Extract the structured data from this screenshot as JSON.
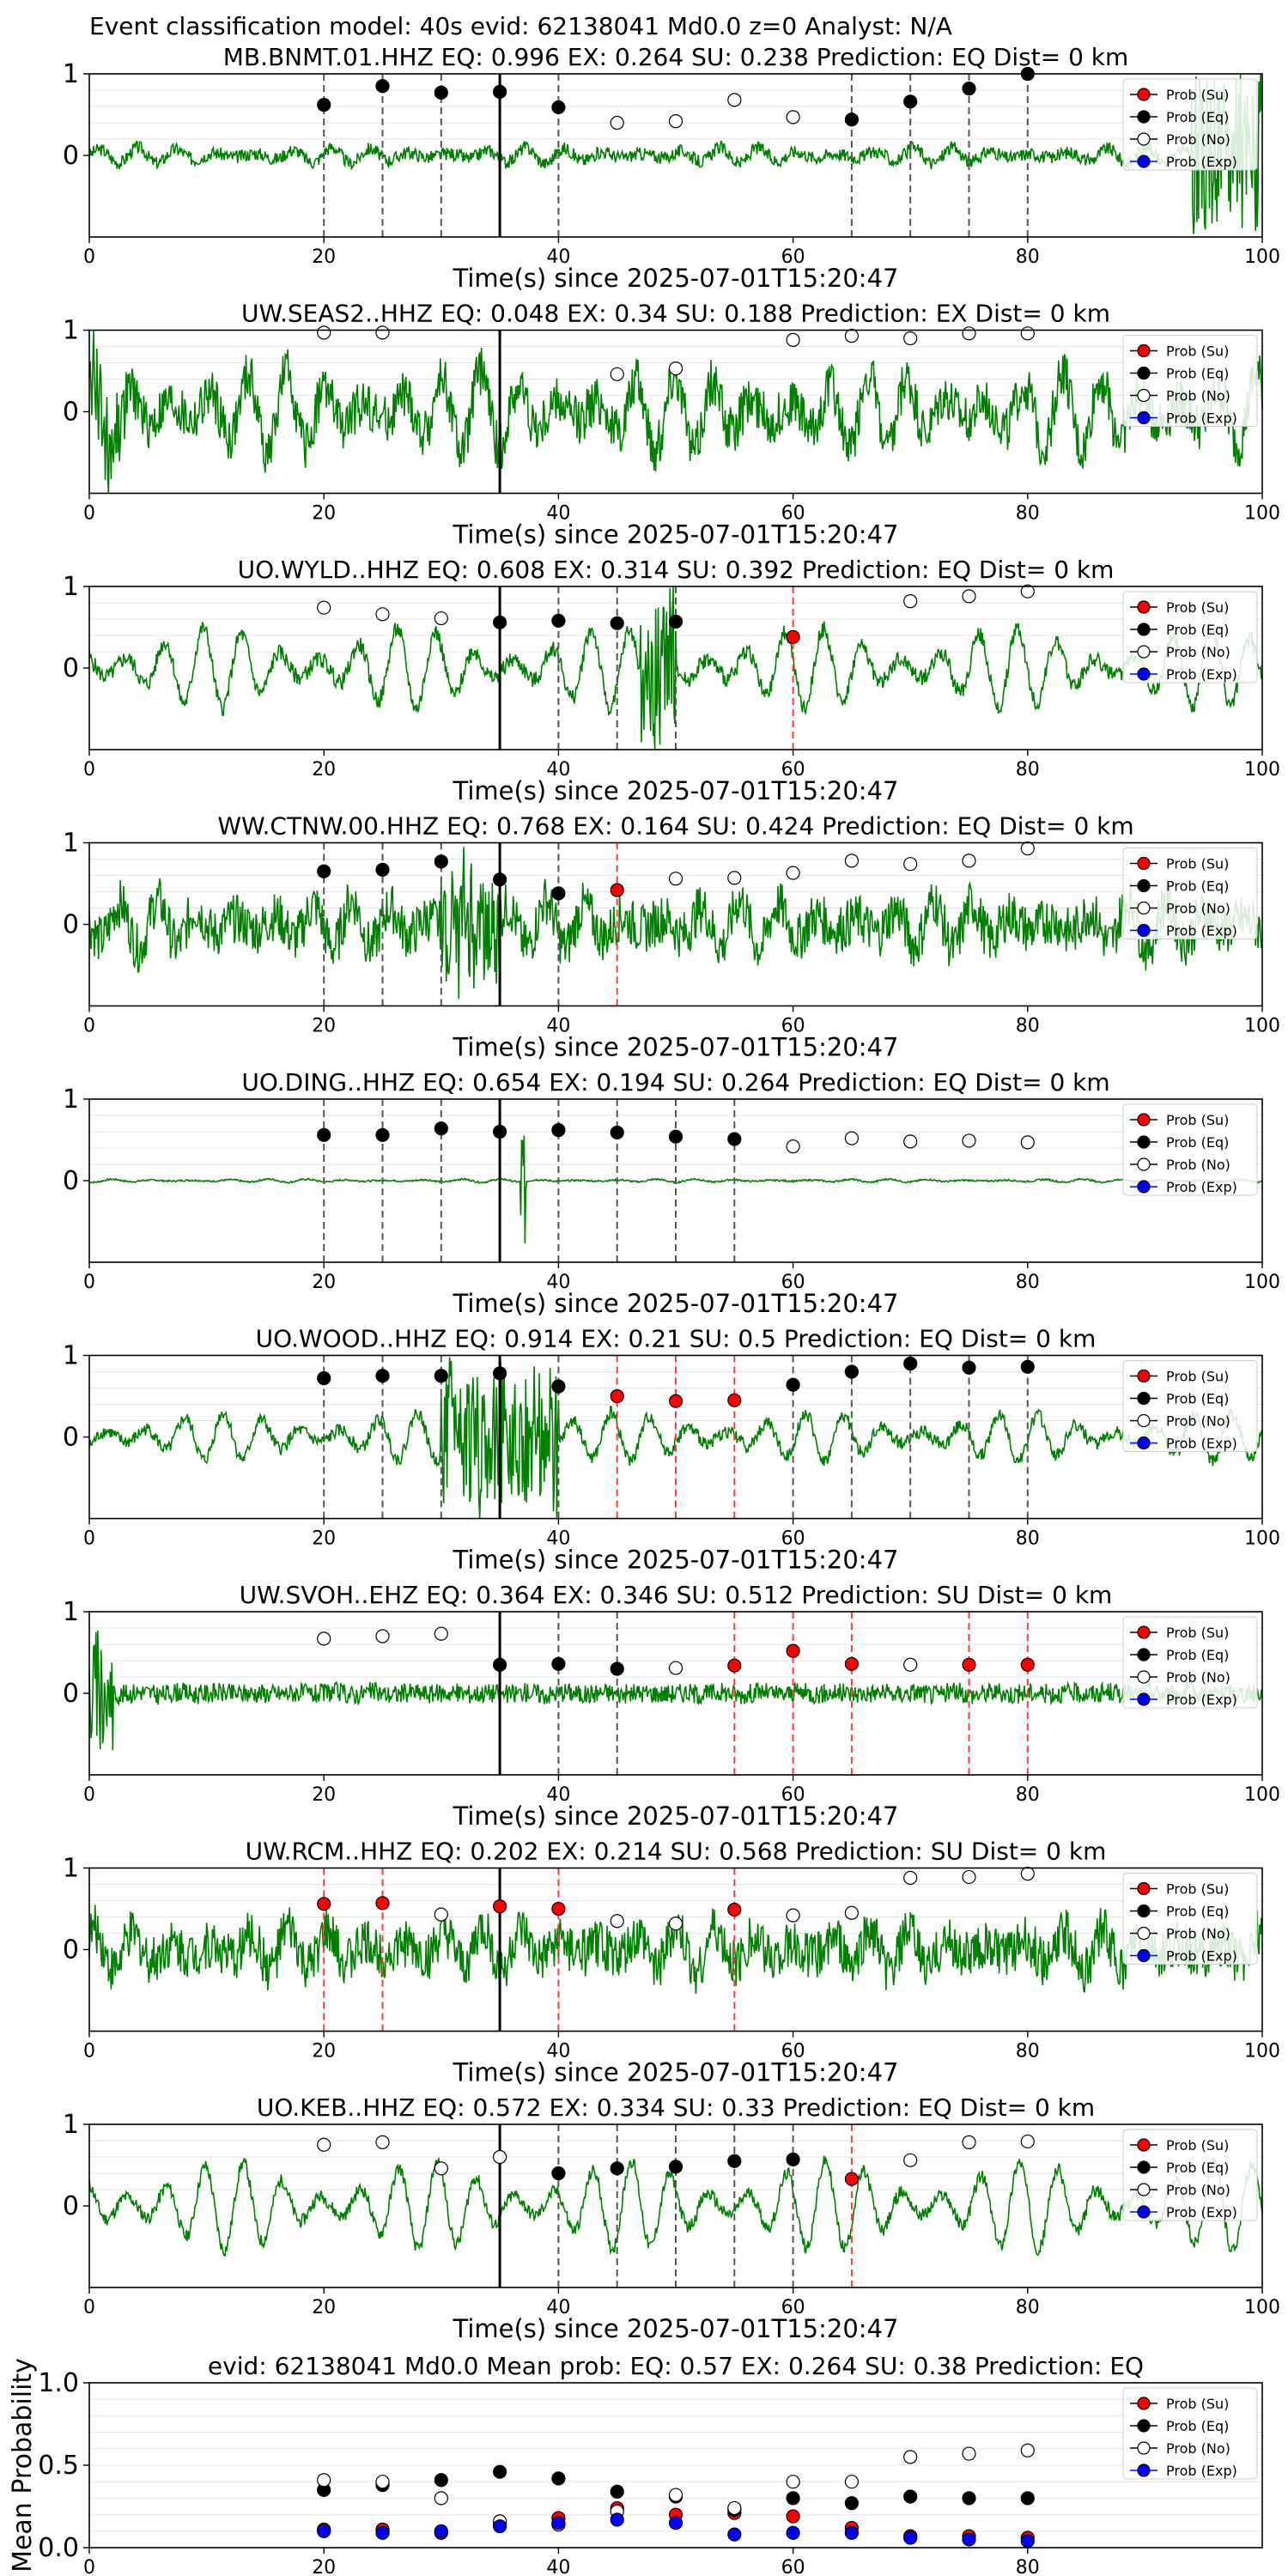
{
  "suptitle": "Event classification model: 40s evid: 62138041 Md0.0 z=0 Analyst: N/A",
  "colors": {
    "waveform": "#008000",
    "su": "#ff0000",
    "eq": "#000000",
    "no": "#ffffff",
    "exp": "#0000ff",
    "vline_eq": "#555555",
    "vline_su": "#ff3b3b",
    "origin": "#000000"
  },
  "legend": [
    "Prob (Su)",
    "Prob (Eq)",
    "Prob (No)",
    "Prob (Exp)"
  ],
  "chart_data": [
    {
      "type": "scatter",
      "title": "MB.BNMT.01.HHZ   EQ: 0.996  EX: 0.264  SU: 0.238   Prediction: EQ    Dist= 0 km",
      "xlabel": "Time(s) since 2025-07-01T15:20:47",
      "xlim": [
        0,
        100
      ],
      "ylim": [
        -1,
        1
      ],
      "xticks": [
        "0",
        "20",
        "40",
        "60",
        "80",
        "100"
      ],
      "yticks": [
        "0",
        "1"
      ],
      "origin_time": 35,
      "waveform": {
        "noise": 0.08,
        "osc": 0.1,
        "burst": [
          94,
          100,
          1.0
        ]
      },
      "windows": [
        {
          "t": 20,
          "class": "eq",
          "p": 0.62
        },
        {
          "t": 25,
          "class": "eq",
          "p": 0.85
        },
        {
          "t": 30,
          "class": "eq",
          "p": 0.77
        },
        {
          "t": 35,
          "class": "eq",
          "p": 0.78
        },
        {
          "t": 40,
          "class": "eq",
          "p": 0.59
        },
        {
          "t": 45,
          "class": "no",
          "p": 0.4
        },
        {
          "t": 50,
          "class": "no",
          "p": 0.42
        },
        {
          "t": 55,
          "class": "no",
          "p": 0.68
        },
        {
          "t": 60,
          "class": "no",
          "p": 0.47
        },
        {
          "t": 65,
          "class": "eq",
          "p": 0.44
        },
        {
          "t": 70,
          "class": "eq",
          "p": 0.66
        },
        {
          "t": 75,
          "class": "eq",
          "p": 0.82
        },
        {
          "t": 80,
          "class": "eq",
          "p": 1.0
        }
      ]
    },
    {
      "type": "scatter",
      "title": "UW.SEAS2..HHZ   EQ: 0.048  EX: 0.34  SU: 0.188   Prediction: EX    Dist= 0 km",
      "xlabel": "Time(s) since 2025-07-01T15:20:47",
      "xlim": [
        0,
        100
      ],
      "ylim": [
        -1,
        1
      ],
      "xticks": [
        "0",
        "20",
        "40",
        "60",
        "80",
        "100"
      ],
      "yticks": [
        "0",
        "1"
      ],
      "origin_time": 35,
      "waveform": {
        "noise": 0.3,
        "osc": 0.5,
        "burst": [
          0,
          3,
          0.6
        ]
      },
      "windows": [
        {
          "t": 20,
          "class": "no",
          "p": 0.97
        },
        {
          "t": 25,
          "class": "no",
          "p": 0.97
        },
        {
          "t": 45,
          "class": "no",
          "p": 0.46
        },
        {
          "t": 50,
          "class": "no",
          "p": 0.53
        },
        {
          "t": 60,
          "class": "no",
          "p": 0.88
        },
        {
          "t": 65,
          "class": "no",
          "p": 0.93
        },
        {
          "t": 70,
          "class": "no",
          "p": 0.9
        },
        {
          "t": 75,
          "class": "no",
          "p": 0.96
        },
        {
          "t": 80,
          "class": "no",
          "p": 0.96
        }
      ]
    },
    {
      "type": "scatter",
      "title": "UO.WYLD..HHZ   EQ: 0.608  EX: 0.314  SU: 0.392   Prediction: EQ    Dist= 0 km",
      "xlabel": "Time(s) since 2025-07-01T15:20:47",
      "xlim": [
        0,
        100
      ],
      "ylim": [
        -1,
        1
      ],
      "xticks": [
        "0",
        "20",
        "40",
        "60",
        "80",
        "100"
      ],
      "yticks": [
        "0",
        "1"
      ],
      "origin_time": 35,
      "waveform": {
        "noise": 0.1,
        "osc": 0.5,
        "burst": [
          47,
          50,
          0.9
        ]
      },
      "windows": [
        {
          "t": 20,
          "class": "no",
          "p": 0.74
        },
        {
          "t": 25,
          "class": "no",
          "p": 0.66
        },
        {
          "t": 30,
          "class": "no",
          "p": 0.61
        },
        {
          "t": 35,
          "class": "eq",
          "p": 0.56
        },
        {
          "t": 40,
          "class": "eq",
          "p": 0.58
        },
        {
          "t": 45,
          "class": "eq",
          "p": 0.55
        },
        {
          "t": 50,
          "class": "eq",
          "p": 0.57
        },
        {
          "t": 60,
          "class": "su",
          "p": 0.38
        },
        {
          "t": 70,
          "class": "no",
          "p": 0.82
        },
        {
          "t": 75,
          "class": "no",
          "p": 0.88
        },
        {
          "t": 80,
          "class": "no",
          "p": 0.94
        }
      ]
    },
    {
      "type": "scatter",
      "title": "WW.CTNW.00.HHZ   EQ: 0.768  EX: 0.164  SU: 0.424   Prediction: EQ    Dist= 0 km",
      "xlabel": "Time(s) since 2025-07-01T15:20:47",
      "xlim": [
        0,
        100
      ],
      "ylim": [
        -1,
        1
      ],
      "xticks": [
        "0",
        "20",
        "40",
        "60",
        "80",
        "100"
      ],
      "yticks": [
        "0",
        "1"
      ],
      "origin_time": 35,
      "waveform": {
        "noise": 0.3,
        "osc": 0.3,
        "burst": [
          30,
          35,
          0.7
        ]
      },
      "windows": [
        {
          "t": 20,
          "class": "eq",
          "p": 0.65
        },
        {
          "t": 25,
          "class": "eq",
          "p": 0.67
        },
        {
          "t": 30,
          "class": "eq",
          "p": 0.77
        },
        {
          "t": 35,
          "class": "eq",
          "p": 0.55
        },
        {
          "t": 40,
          "class": "eq",
          "p": 0.38
        },
        {
          "t": 45,
          "class": "su",
          "p": 0.42
        },
        {
          "t": 50,
          "class": "no",
          "p": 0.56
        },
        {
          "t": 55,
          "class": "no",
          "p": 0.57
        },
        {
          "t": 60,
          "class": "no",
          "p": 0.63
        },
        {
          "t": 65,
          "class": "no",
          "p": 0.78
        },
        {
          "t": 70,
          "class": "no",
          "p": 0.74
        },
        {
          "t": 75,
          "class": "no",
          "p": 0.78
        },
        {
          "t": 80,
          "class": "no",
          "p": 0.93
        }
      ]
    },
    {
      "type": "scatter",
      "title": "UO.DING..HHZ   EQ: 0.654  EX: 0.194  SU: 0.264   Prediction: EQ    Dist= 0 km",
      "xlabel": "Time(s) since 2025-07-01T15:20:47",
      "xlim": [
        0,
        100
      ],
      "ylim": [
        -1,
        1
      ],
      "xticks": [
        "0",
        "20",
        "40",
        "60",
        "80",
        "100"
      ],
      "yticks": [
        "0",
        "1"
      ],
      "origin_time": 35,
      "waveform": {
        "noise": 0.01,
        "osc": 0.02,
        "spike": [
          37,
          1.0
        ]
      },
      "windows": [
        {
          "t": 20,
          "class": "eq",
          "p": 0.56
        },
        {
          "t": 25,
          "class": "eq",
          "p": 0.56
        },
        {
          "t": 30,
          "class": "eq",
          "p": 0.64
        },
        {
          "t": 35,
          "class": "eq",
          "p": 0.6
        },
        {
          "t": 40,
          "class": "eq",
          "p": 0.62
        },
        {
          "t": 45,
          "class": "eq",
          "p": 0.59
        },
        {
          "t": 50,
          "class": "eq",
          "p": 0.54
        },
        {
          "t": 55,
          "class": "eq",
          "p": 0.51
        },
        {
          "t": 60,
          "class": "no",
          "p": 0.42
        },
        {
          "t": 65,
          "class": "no",
          "p": 0.52
        },
        {
          "t": 70,
          "class": "no",
          "p": 0.48
        },
        {
          "t": 75,
          "class": "no",
          "p": 0.49
        },
        {
          "t": 80,
          "class": "no",
          "p": 0.47
        }
      ]
    },
    {
      "type": "scatter",
      "title": "UO.WOOD..HHZ   EQ: 0.914  EX: 0.21  SU: 0.5   Prediction: EQ    Dist= 0 km",
      "xlabel": "Time(s) since 2025-07-01T15:20:47",
      "xlim": [
        0,
        100
      ],
      "ylim": [
        -1,
        1
      ],
      "xticks": [
        "0",
        "20",
        "40",
        "60",
        "80",
        "100"
      ],
      "yticks": [
        "0",
        "1"
      ],
      "origin_time": 35,
      "waveform": {
        "noise": 0.08,
        "osc": 0.3,
        "burst": [
          30,
          40,
          0.9
        ]
      },
      "windows": [
        {
          "t": 20,
          "class": "eq",
          "p": 0.72
        },
        {
          "t": 25,
          "class": "eq",
          "p": 0.75
        },
        {
          "t": 30,
          "class": "eq",
          "p": 0.75
        },
        {
          "t": 35,
          "class": "eq",
          "p": 0.78
        },
        {
          "t": 40,
          "class": "eq",
          "p": 0.62
        },
        {
          "t": 45,
          "class": "su",
          "p": 0.5
        },
        {
          "t": 50,
          "class": "su",
          "p": 0.44
        },
        {
          "t": 55,
          "class": "su",
          "p": 0.45
        },
        {
          "t": 60,
          "class": "eq",
          "p": 0.64
        },
        {
          "t": 65,
          "class": "eq",
          "p": 0.8
        },
        {
          "t": 70,
          "class": "eq",
          "p": 0.9
        },
        {
          "t": 75,
          "class": "eq",
          "p": 0.85
        },
        {
          "t": 80,
          "class": "eq",
          "p": 0.86
        }
      ]
    },
    {
      "type": "scatter",
      "title": "UW.SVOH..EHZ   EQ: 0.364  EX: 0.346  SU: 0.512   Prediction: SU    Dist= 0 km",
      "xlabel": "Time(s) since 2025-07-01T15:20:47",
      "xlim": [
        0,
        100
      ],
      "ylim": [
        -1,
        1
      ],
      "xticks": [
        "0",
        "20",
        "40",
        "60",
        "80",
        "100"
      ],
      "yticks": [
        "0",
        "1"
      ],
      "origin_time": 35,
      "waveform": {
        "noise": 0.12,
        "osc": 0.02,
        "burst": [
          0,
          2,
          0.8
        ]
      },
      "windows": [
        {
          "t": 20,
          "class": "no",
          "p": 0.67
        },
        {
          "t": 25,
          "class": "no",
          "p": 0.7
        },
        {
          "t": 30,
          "class": "no",
          "p": 0.73
        },
        {
          "t": 35,
          "class": "eq",
          "p": 0.35
        },
        {
          "t": 40,
          "class": "eq",
          "p": 0.36
        },
        {
          "t": 45,
          "class": "eq",
          "p": 0.3
        },
        {
          "t": 50,
          "class": "no",
          "p": 0.31
        },
        {
          "t": 55,
          "class": "su",
          "p": 0.34
        },
        {
          "t": 60,
          "class": "su",
          "p": 0.52
        },
        {
          "t": 65,
          "class": "su",
          "p": 0.36
        },
        {
          "t": 70,
          "class": "no",
          "p": 0.35
        },
        {
          "t": 75,
          "class": "su",
          "p": 0.35
        },
        {
          "t": 80,
          "class": "su",
          "p": 0.35
        }
      ]
    },
    {
      "type": "scatter",
      "title": "UW.RCM..HHZ   EQ: 0.202  EX: 0.214  SU: 0.568   Prediction: SU    Dist= 0 km",
      "xlabel": "Time(s) since 2025-07-01T15:20:47",
      "xlim": [
        0,
        100
      ],
      "ylim": [
        -1,
        1
      ],
      "xticks": [
        "0",
        "20",
        "40",
        "60",
        "80",
        "100"
      ],
      "yticks": [
        "0",
        "1"
      ],
      "origin_time": 35,
      "waveform": {
        "noise": 0.3,
        "osc": 0.25
      },
      "windows": [
        {
          "t": 20,
          "class": "su",
          "p": 0.56
        },
        {
          "t": 25,
          "class": "su",
          "p": 0.57
        },
        {
          "t": 30,
          "class": "no",
          "p": 0.43
        },
        {
          "t": 35,
          "class": "su",
          "p": 0.53
        },
        {
          "t": 40,
          "class": "su",
          "p": 0.5
        },
        {
          "t": 45,
          "class": "no",
          "p": 0.35
        },
        {
          "t": 50,
          "class": "no",
          "p": 0.32
        },
        {
          "t": 55,
          "class": "su",
          "p": 0.49
        },
        {
          "t": 60,
          "class": "no",
          "p": 0.42
        },
        {
          "t": 65,
          "class": "no",
          "p": 0.45
        },
        {
          "t": 70,
          "class": "no",
          "p": 0.88
        },
        {
          "t": 75,
          "class": "no",
          "p": 0.89
        },
        {
          "t": 80,
          "class": "no",
          "p": 0.93
        }
      ]
    },
    {
      "type": "scatter",
      "title": "UO.KEB..HHZ   EQ: 0.572  EX: 0.334  SU: 0.33   Prediction: EQ    Dist= 0 km",
      "xlabel": "Time(s) since 2025-07-01T15:20:47",
      "xlim": [
        0,
        100
      ],
      "ylim": [
        -1,
        1
      ],
      "xticks": [
        "0",
        "20",
        "40",
        "60",
        "80",
        "100"
      ],
      "yticks": [
        "0",
        "1"
      ],
      "origin_time": 35,
      "waveform": {
        "noise": 0.08,
        "osc": 0.55
      },
      "windows": [
        {
          "t": 20,
          "class": "no",
          "p": 0.75
        },
        {
          "t": 25,
          "class": "no",
          "p": 0.78
        },
        {
          "t": 30,
          "class": "no",
          "p": 0.46
        },
        {
          "t": 35,
          "class": "no",
          "p": 0.6
        },
        {
          "t": 40,
          "class": "eq",
          "p": 0.4
        },
        {
          "t": 45,
          "class": "eq",
          "p": 0.46
        },
        {
          "t": 50,
          "class": "eq",
          "p": 0.48
        },
        {
          "t": 55,
          "class": "eq",
          "p": 0.55
        },
        {
          "t": 60,
          "class": "eq",
          "p": 0.57
        },
        {
          "t": 65,
          "class": "su",
          "p": 0.33
        },
        {
          "t": 70,
          "class": "no",
          "p": 0.56
        },
        {
          "t": 75,
          "class": "no",
          "p": 0.78
        },
        {
          "t": 80,
          "class": "no",
          "p": 0.79
        }
      ]
    },
    {
      "type": "scatter",
      "title": "evid: 62138041  Md0.0   Mean prob:   EQ: 0.57  EX: 0.264  SU: 0.38   Prediction: EQ",
      "xlabel": "",
      "ylabel": "Mean Probability",
      "xlim": [
        0,
        100
      ],
      "ylim": [
        0,
        1
      ],
      "xticks": [
        "0",
        "20",
        "40",
        "60",
        "80"
      ],
      "yticks": [
        "0.0",
        "0.5",
        "1.0"
      ],
      "x": [
        20,
        25,
        30,
        35,
        40,
        45,
        50,
        55,
        60,
        65,
        70,
        75,
        80
      ],
      "series": [
        {
          "name": "Prob (Su)",
          "values": [
            0.11,
            0.11,
            0.09,
            0.15,
            0.18,
            0.24,
            0.2,
            0.21,
            0.19,
            0.12,
            0.07,
            0.07,
            0.06
          ]
        },
        {
          "name": "Prob (Eq)",
          "values": [
            0.35,
            0.38,
            0.41,
            0.46,
            0.42,
            0.34,
            0.31,
            0.23,
            0.3,
            0.27,
            0.31,
            0.3,
            0.3
          ]
        },
        {
          "name": "Prob (No)",
          "values": [
            0.41,
            0.4,
            0.3,
            0.16,
            0.14,
            0.22,
            0.32,
            0.24,
            0.4,
            0.4,
            0.55,
            0.57,
            0.59
          ]
        },
        {
          "name": "Prob (Exp)",
          "values": [
            0.1,
            0.09,
            0.1,
            0.13,
            0.15,
            0.17,
            0.15,
            0.08,
            0.09,
            0.09,
            0.06,
            0.05,
            0.04
          ]
        }
      ]
    }
  ]
}
